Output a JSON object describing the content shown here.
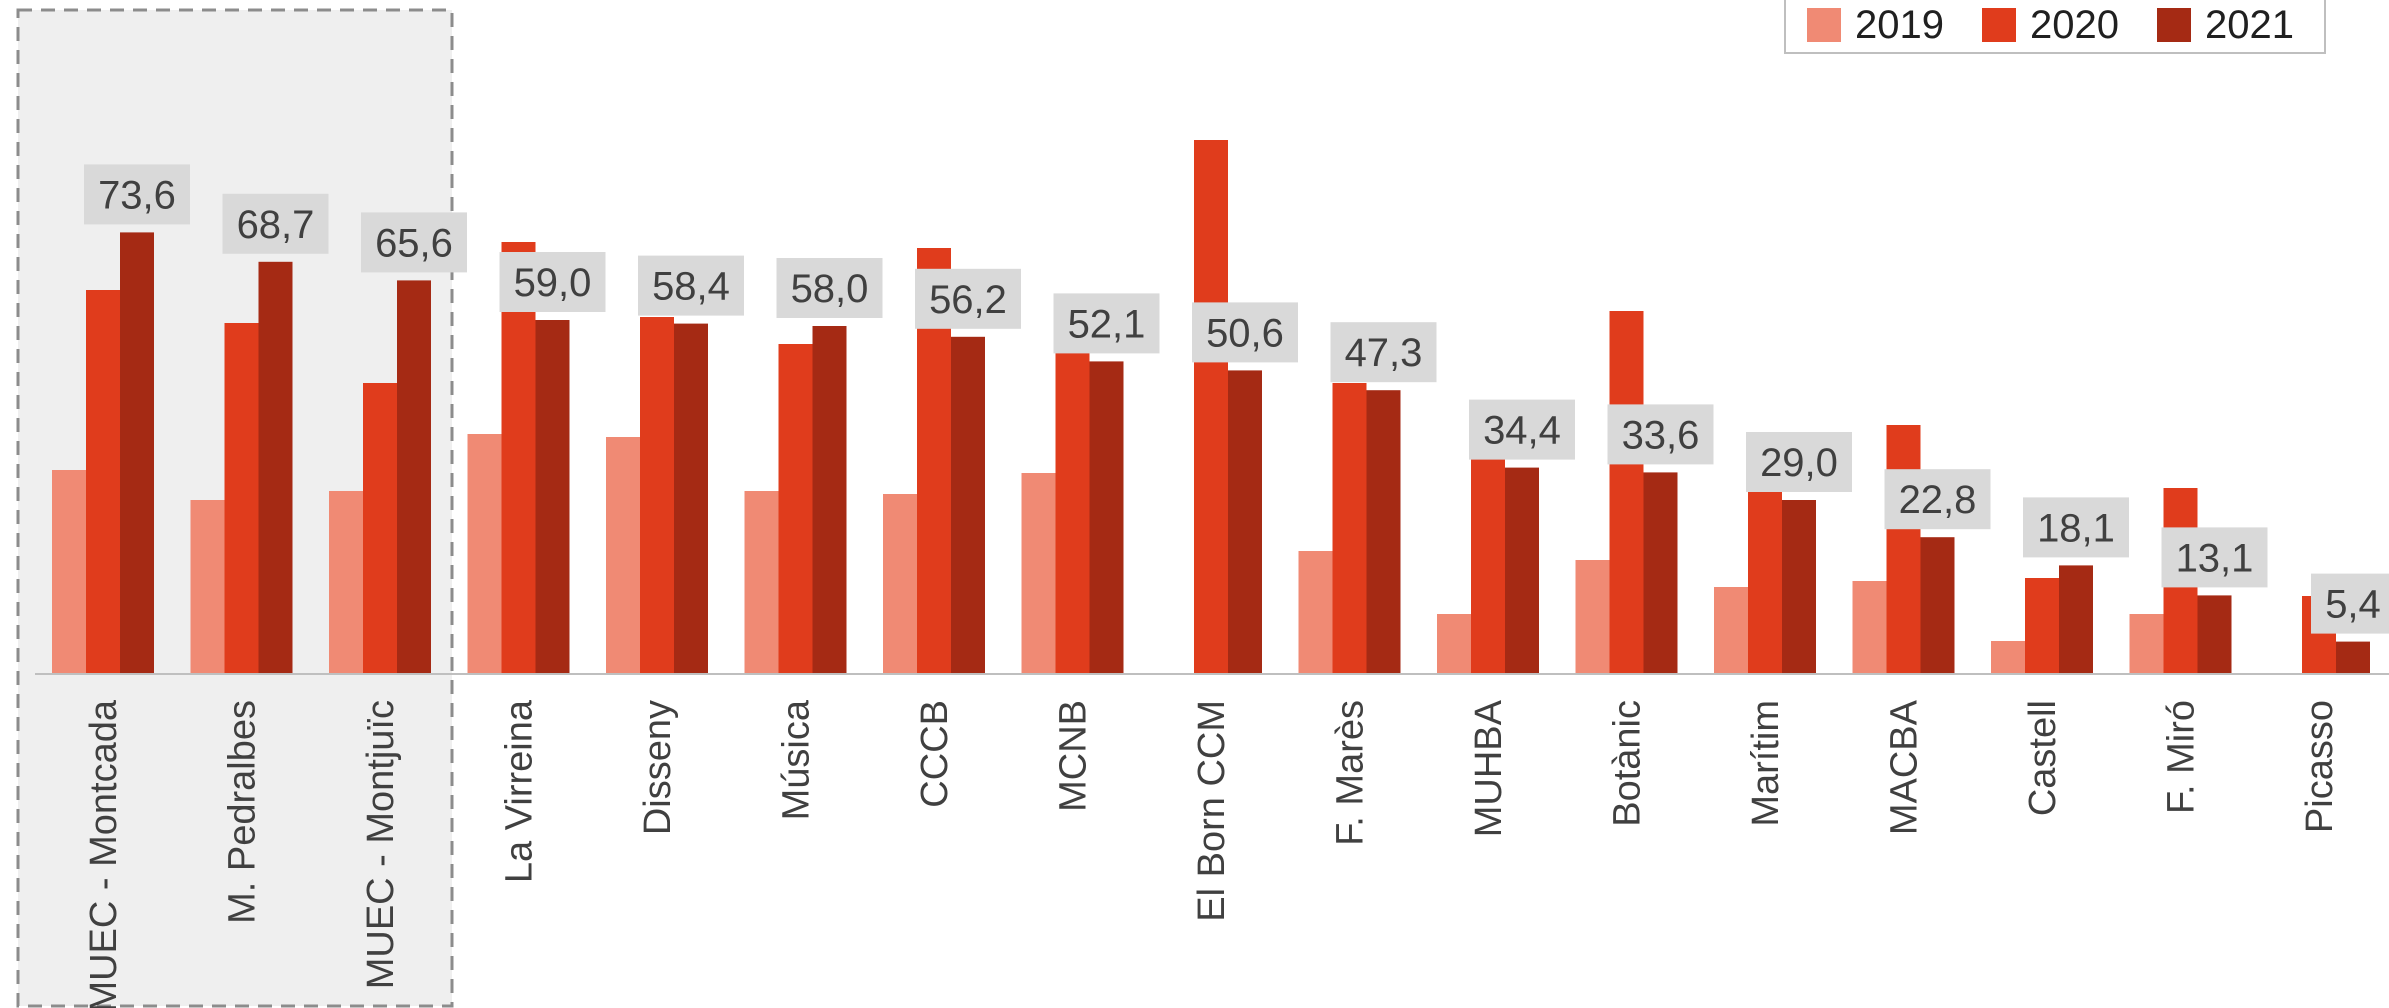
{
  "chart_data": {
    "type": "bar",
    "categories": [
      "MUEC -  Montcada",
      "M. Pedralbes",
      "MUEC -  Montjuïc",
      "La Virreina",
      "Disseny",
      "Música",
      "CCCB",
      "MCNB",
      "El Born CCM",
      "F. Marès",
      "MUHBA",
      "Botànic",
      "Marítim",
      "MACBA",
      "Castell",
      "F. Miró",
      "Picasso"
    ],
    "series": [
      {
        "name": "2019",
        "color": "#f08a74",
        "values": [
          34.0,
          29.0,
          30.5,
          40.0,
          39.5,
          30.5,
          30.0,
          33.5,
          null,
          20.5,
          10.0,
          19.0,
          14.5,
          15.5,
          5.5,
          10.0,
          null
        ]
      },
      {
        "name": "2020",
        "color": "#e03c1c",
        "values": [
          64.0,
          58.5,
          48.5,
          72.0,
          59.5,
          55.0,
          71.0,
          58.0,
          89.0,
          48.5,
          37.0,
          60.5,
          37.5,
          41.5,
          16.0,
          31.0,
          13.0
        ]
      },
      {
        "name": "2021",
        "color": "#a52a14",
        "values": [
          73.6,
          68.7,
          65.6,
          59.0,
          58.4,
          58.0,
          56.2,
          52.1,
          50.6,
          47.3,
          34.4,
          33.6,
          29.0,
          22.8,
          18.1,
          13.1,
          5.4
        ]
      }
    ],
    "data_labels": [
      "73,6",
      "68,7",
      "65,6",
      "59,0",
      "58,4",
      "58,0",
      "56,2",
      "52,1",
      "50,6",
      "47,3",
      "34,4",
      "33,6",
      "29,0",
      "22,8",
      "18,1",
      "13,1",
      "5,4"
    ],
    "highlight_group": [
      "MUEC -  Montcada",
      "M. Pedralbes",
      "MUEC -  Montjuïc"
    ],
    "ylim": [
      0,
      100
    ],
    "grid": false,
    "legend": "top-right",
    "title": "",
    "xlabel": "",
    "ylabel": ""
  }
}
